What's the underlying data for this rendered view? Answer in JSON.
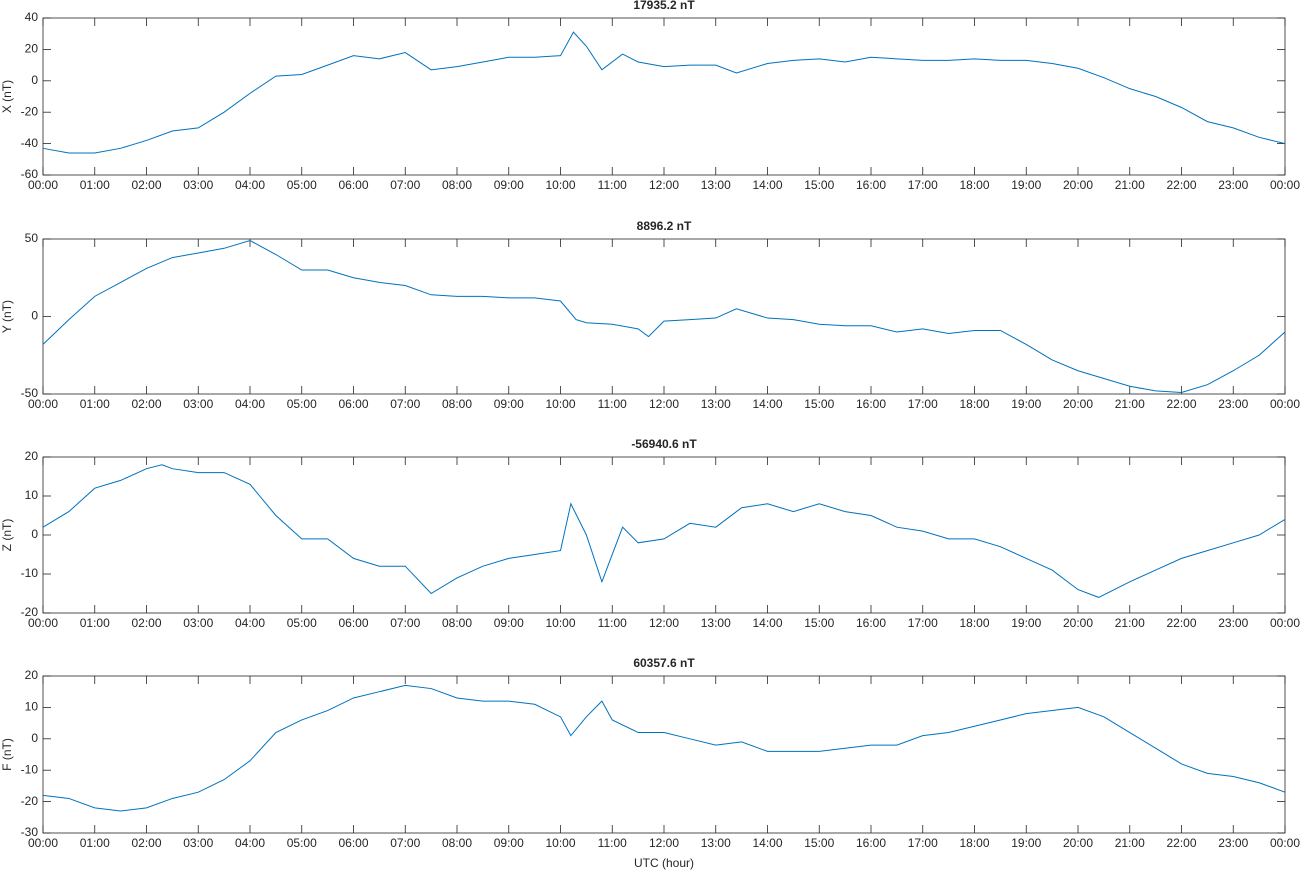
{
  "chart_data": [
    {
      "type": "line",
      "title": "17935.2 nT",
      "ylabel": "X (nT)",
      "color": "#0072bd",
      "x": [
        0,
        0.5,
        1,
        1.5,
        2,
        2.5,
        3,
        3.5,
        4,
        4.5,
        5,
        5.5,
        6,
        6.5,
        7,
        7.5,
        8,
        8.5,
        9,
        9.5,
        10,
        10.25,
        10.5,
        10.8,
        11.2,
        11.5,
        12,
        12.5,
        13,
        13.4,
        14,
        14.5,
        15,
        15.5,
        16,
        16.5,
        17,
        17.5,
        18,
        18.5,
        19,
        19.5,
        20,
        20.5,
        21,
        21.5,
        22,
        22.5,
        23,
        23.5,
        24
      ],
      "values": [
        -43,
        -46,
        -46,
        -43,
        -38,
        -32,
        -30,
        -20,
        -8,
        3,
        4,
        10,
        16,
        14,
        18,
        7,
        9,
        12,
        15,
        15,
        16,
        31,
        22,
        7,
        17,
        12,
        9,
        10,
        10,
        5,
        11,
        13,
        14,
        12,
        15,
        14,
        13,
        13,
        14,
        13,
        13,
        11,
        8,
        2,
        -5,
        -10,
        -17,
        -26,
        -30,
        -36,
        -40
      ],
      "xlim": [
        0,
        24
      ],
      "ylim": [
        -60,
        40
      ],
      "yticks": [
        -60,
        -40,
        -20,
        0,
        20,
        40
      ],
      "xticks": [
        {
          "value": 0,
          "label": "00:00"
        },
        {
          "value": 1,
          "label": "01:00"
        },
        {
          "value": 2,
          "label": "02:00"
        },
        {
          "value": 3,
          "label": "03:00"
        },
        {
          "value": 4,
          "label": "04:00"
        },
        {
          "value": 5,
          "label": "05:00"
        },
        {
          "value": 6,
          "label": "06:00"
        },
        {
          "value": 7,
          "label": "07:00"
        },
        {
          "value": 8,
          "label": "08:00"
        },
        {
          "value": 9,
          "label": "09:00"
        },
        {
          "value": 10,
          "label": "10:00"
        },
        {
          "value": 11,
          "label": "11:00"
        },
        {
          "value": 12,
          "label": "12:00"
        },
        {
          "value": 13,
          "label": "13:00"
        },
        {
          "value": 14,
          "label": "14:00"
        },
        {
          "value": 15,
          "label": "15:00"
        },
        {
          "value": 16,
          "label": "16:00"
        },
        {
          "value": 17,
          "label": "17:00"
        },
        {
          "value": 18,
          "label": "18:00"
        },
        {
          "value": 19,
          "label": "19:00"
        },
        {
          "value": 20,
          "label": "20:00"
        },
        {
          "value": 21,
          "label": "21:00"
        },
        {
          "value": 22,
          "label": "22:00"
        },
        {
          "value": 23,
          "label": "23:00"
        },
        {
          "value": 24,
          "label": "00:00"
        }
      ]
    },
    {
      "type": "line",
      "title": "8896.2 nT",
      "ylabel": "Y (nT)",
      "color": "#0072bd",
      "x": [
        0,
        0.5,
        1,
        1.5,
        2,
        2.5,
        3,
        3.5,
        4,
        4.5,
        5,
        5.5,
        6,
        6.5,
        7,
        7.5,
        8,
        8.5,
        9,
        9.5,
        10,
        10.3,
        10.5,
        11,
        11.5,
        11.7,
        12,
        12.5,
        13,
        13.4,
        14,
        14.5,
        15,
        15.5,
        16,
        16.5,
        17,
        17.5,
        18,
        18.5,
        19,
        19.5,
        20,
        20.5,
        21,
        21.5,
        22,
        22.5,
        23,
        23.5,
        24
      ],
      "values": [
        -18,
        -2,
        13,
        22,
        31,
        38,
        41,
        44,
        49,
        40,
        30,
        30,
        25,
        22,
        20,
        14,
        13,
        13,
        12,
        12,
        10,
        -2,
        -4,
        -5,
        -8,
        -13,
        -3,
        -2,
        -1,
        5,
        -1,
        -2,
        -5,
        -6,
        -6,
        -10,
        -8,
        -11,
        -9,
        -9,
        -18,
        -28,
        -35,
        -40,
        -45,
        -48,
        -49,
        -44,
        -35,
        -25,
        -10
      ],
      "xlim": [
        0,
        24
      ],
      "ylim": [
        -50,
        50
      ],
      "yticks": [
        -50,
        0,
        50
      ],
      "xticks": [
        {
          "value": 0,
          "label": "00:00"
        },
        {
          "value": 1,
          "label": "01:00"
        },
        {
          "value": 2,
          "label": "02:00"
        },
        {
          "value": 3,
          "label": "03:00"
        },
        {
          "value": 4,
          "label": "04:00"
        },
        {
          "value": 5,
          "label": "05:00"
        },
        {
          "value": 6,
          "label": "06:00"
        },
        {
          "value": 7,
          "label": "07:00"
        },
        {
          "value": 8,
          "label": "08:00"
        },
        {
          "value": 9,
          "label": "09:00"
        },
        {
          "value": 10,
          "label": "10:00"
        },
        {
          "value": 11,
          "label": "11:00"
        },
        {
          "value": 12,
          "label": "12:00"
        },
        {
          "value": 13,
          "label": "13:00"
        },
        {
          "value": 14,
          "label": "14:00"
        },
        {
          "value": 15,
          "label": "15:00"
        },
        {
          "value": 16,
          "label": "16:00"
        },
        {
          "value": 17,
          "label": "17:00"
        },
        {
          "value": 18,
          "label": "18:00"
        },
        {
          "value": 19,
          "label": "19:00"
        },
        {
          "value": 20,
          "label": "20:00"
        },
        {
          "value": 21,
          "label": "21:00"
        },
        {
          "value": 22,
          "label": "22:00"
        },
        {
          "value": 23,
          "label": "23:00"
        },
        {
          "value": 24,
          "label": "00:00"
        }
      ]
    },
    {
      "type": "line",
      "title": "-56940.6 nT",
      "ylabel": "Z (nT)",
      "color": "#0072bd",
      "x": [
        0,
        0.5,
        1,
        1.5,
        2,
        2.3,
        2.5,
        3,
        3.5,
        4,
        4.5,
        5,
        5.5,
        6,
        6.5,
        7,
        7.5,
        8,
        8.5,
        9,
        9.5,
        10,
        10.2,
        10.5,
        10.8,
        11.2,
        11.5,
        12,
        12.5,
        13,
        13.5,
        14,
        14.5,
        15,
        15.5,
        16,
        16.5,
        17,
        17.5,
        18,
        18.5,
        19,
        19.5,
        20,
        20.4,
        21,
        21.5,
        22,
        22.5,
        23,
        23.5,
        24
      ],
      "values": [
        2,
        6,
        12,
        14,
        17,
        18,
        17,
        16,
        16,
        13,
        5,
        -1,
        -1,
        -6,
        -8,
        -8,
        -15,
        -11,
        -8,
        -6,
        -5,
        -4,
        8,
        0,
        -12,
        2,
        -2,
        -1,
        3,
        2,
        7,
        8,
        6,
        8,
        6,
        5,
        2,
        1,
        -1,
        -1,
        -3,
        -6,
        -9,
        -14,
        -16,
        -12,
        -9,
        -6,
        -4,
        -2,
        0,
        4
      ],
      "xlim": [
        0,
        24
      ],
      "ylim": [
        -20,
        20
      ],
      "yticks": [
        -20,
        -10,
        0,
        10,
        20
      ],
      "xticks": [
        {
          "value": 0,
          "label": "00:00"
        },
        {
          "value": 1,
          "label": "01:00"
        },
        {
          "value": 2,
          "label": "02:00"
        },
        {
          "value": 3,
          "label": "03:00"
        },
        {
          "value": 4,
          "label": "04:00"
        },
        {
          "value": 5,
          "label": "05:00"
        },
        {
          "value": 6,
          "label": "06:00"
        },
        {
          "value": 7,
          "label": "07:00"
        },
        {
          "value": 8,
          "label": "08:00"
        },
        {
          "value": 9,
          "label": "09:00"
        },
        {
          "value": 10,
          "label": "10:00"
        },
        {
          "value": 11,
          "label": "11:00"
        },
        {
          "value": 12,
          "label": "12:00"
        },
        {
          "value": 13,
          "label": "13:00"
        },
        {
          "value": 14,
          "label": "14:00"
        },
        {
          "value": 15,
          "label": "15:00"
        },
        {
          "value": 16,
          "label": "16:00"
        },
        {
          "value": 17,
          "label": "17:00"
        },
        {
          "value": 18,
          "label": "18:00"
        },
        {
          "value": 19,
          "label": "19:00"
        },
        {
          "value": 20,
          "label": "20:00"
        },
        {
          "value": 21,
          "label": "21:00"
        },
        {
          "value": 22,
          "label": "22:00"
        },
        {
          "value": 23,
          "label": "23:00"
        },
        {
          "value": 24,
          "label": "00:00"
        }
      ]
    },
    {
      "type": "line",
      "title": "60357.6 nT",
      "ylabel": "F (nT)",
      "xlabel": "UTC (hour)",
      "color": "#0072bd",
      "x": [
        0,
        0.5,
        1,
        1.5,
        2,
        2.5,
        3,
        3.5,
        4,
        4.5,
        5,
        5.5,
        6,
        6.5,
        7,
        7.5,
        8,
        8.5,
        9,
        9.5,
        10,
        10.2,
        10.5,
        10.8,
        11,
        11.5,
        12,
        12.5,
        13,
        13.5,
        14,
        14.5,
        15,
        15.5,
        16,
        16.5,
        17,
        17.5,
        18,
        18.5,
        19,
        19.5,
        20,
        20.5,
        21,
        21.5,
        22,
        22.5,
        23,
        23.5,
        24
      ],
      "values": [
        -18,
        -19,
        -22,
        -23,
        -22,
        -19,
        -17,
        -13,
        -7,
        2,
        6,
        9,
        13,
        15,
        17,
        16,
        13,
        12,
        12,
        11,
        7,
        1,
        7,
        12,
        6,
        2,
        2,
        0,
        -2,
        -1,
        -4,
        -4,
        -4,
        -3,
        -2,
        -2,
        1,
        2,
        4,
        6,
        8,
        9,
        10,
        7,
        2,
        -3,
        -8,
        -11,
        -12,
        -14,
        -17
      ],
      "xlim": [
        0,
        24
      ],
      "ylim": [
        -30,
        20
      ],
      "yticks": [
        -30,
        -20,
        -10,
        0,
        10,
        20
      ],
      "xticks": [
        {
          "value": 0,
          "label": "00:00"
        },
        {
          "value": 1,
          "label": "01:00"
        },
        {
          "value": 2,
          "label": "02:00"
        },
        {
          "value": 3,
          "label": "03:00"
        },
        {
          "value": 4,
          "label": "04:00"
        },
        {
          "value": 5,
          "label": "05:00"
        },
        {
          "value": 6,
          "label": "06:00"
        },
        {
          "value": 7,
          "label": "07:00"
        },
        {
          "value": 8,
          "label": "08:00"
        },
        {
          "value": 9,
          "label": "09:00"
        },
        {
          "value": 10,
          "label": "10:00"
        },
        {
          "value": 11,
          "label": "11:00"
        },
        {
          "value": 12,
          "label": "12:00"
        },
        {
          "value": 13,
          "label": "13:00"
        },
        {
          "value": 14,
          "label": "14:00"
        },
        {
          "value": 15,
          "label": "15:00"
        },
        {
          "value": 16,
          "label": "16:00"
        },
        {
          "value": 17,
          "label": "17:00"
        },
        {
          "value": 18,
          "label": "18:00"
        },
        {
          "value": 19,
          "label": "19:00"
        },
        {
          "value": 20,
          "label": "20:00"
        },
        {
          "value": 21,
          "label": "21:00"
        },
        {
          "value": 22,
          "label": "22:00"
        },
        {
          "value": 23,
          "label": "23:00"
        },
        {
          "value": 24,
          "label": "00:00"
        }
      ]
    }
  ]
}
